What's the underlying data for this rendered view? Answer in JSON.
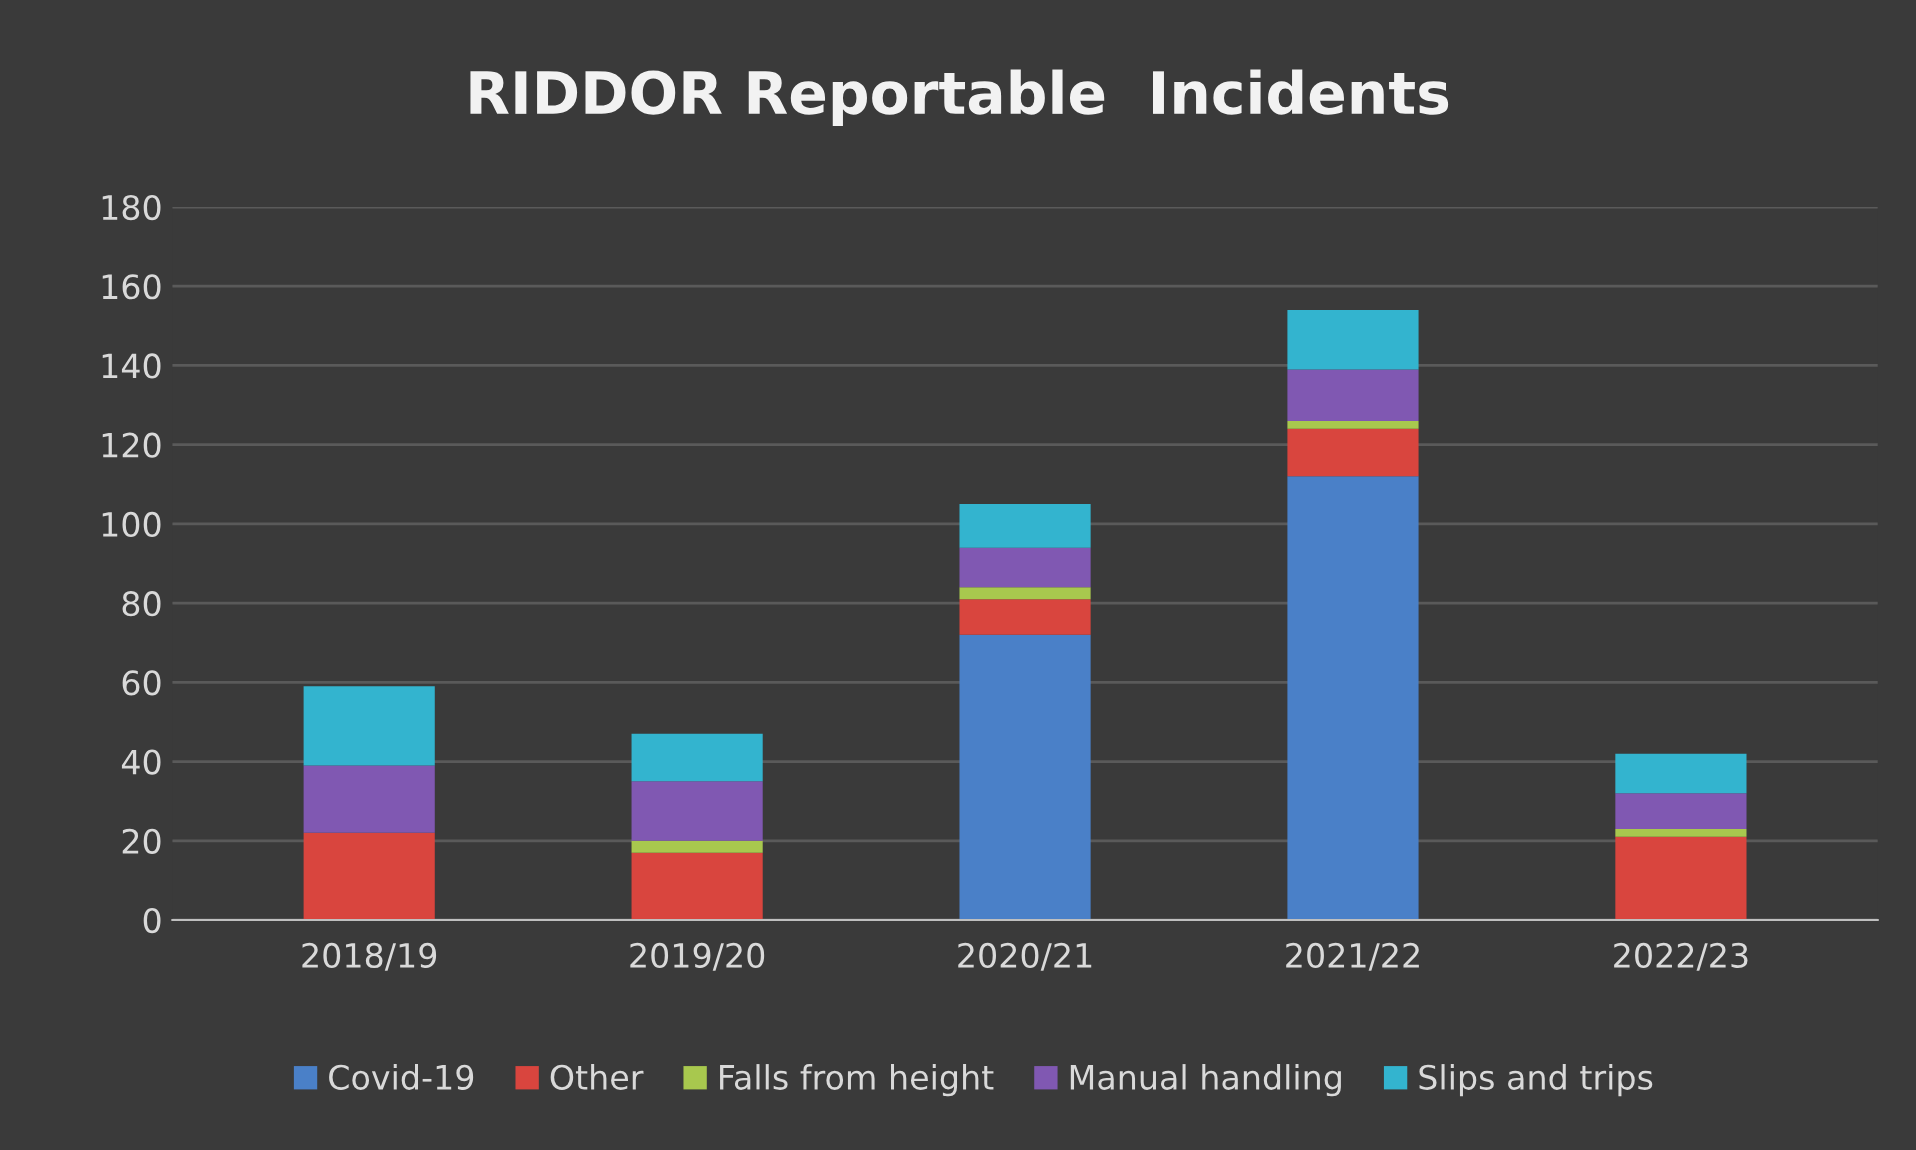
{
  "chart_data": {
    "type": "bar",
    "title": "RIDDOR Reportable  Incidents",
    "stacked": true,
    "categories": [
      "2018/19",
      "2019/20",
      "2020/21",
      "2021/22",
      "2022/23"
    ],
    "series": [
      {
        "name": "Covid-19",
        "color": "#4a80c8",
        "values": [
          0,
          0,
          72,
          112,
          0
        ]
      },
      {
        "name": "Other",
        "color": "#d9453e",
        "values": [
          22,
          17,
          9,
          12,
          21
        ]
      },
      {
        "name": "Falls from height",
        "color": "#a8c84e",
        "values": [
          0,
          3,
          3,
          2,
          2
        ]
      },
      {
        "name": "Manual handling",
        "color": "#8058b2",
        "values": [
          17,
          15,
          10,
          13,
          9
        ]
      },
      {
        "name": "Slips and trips",
        "color": "#33b4cf",
        "values": [
          20,
          12,
          11,
          15,
          10
        ]
      }
    ],
    "ylim": [
      0,
      180
    ],
    "yticks": [
      0,
      20,
      40,
      60,
      80,
      100,
      120,
      140,
      160,
      180
    ],
    "grid": "y",
    "legend": "bottom"
  }
}
